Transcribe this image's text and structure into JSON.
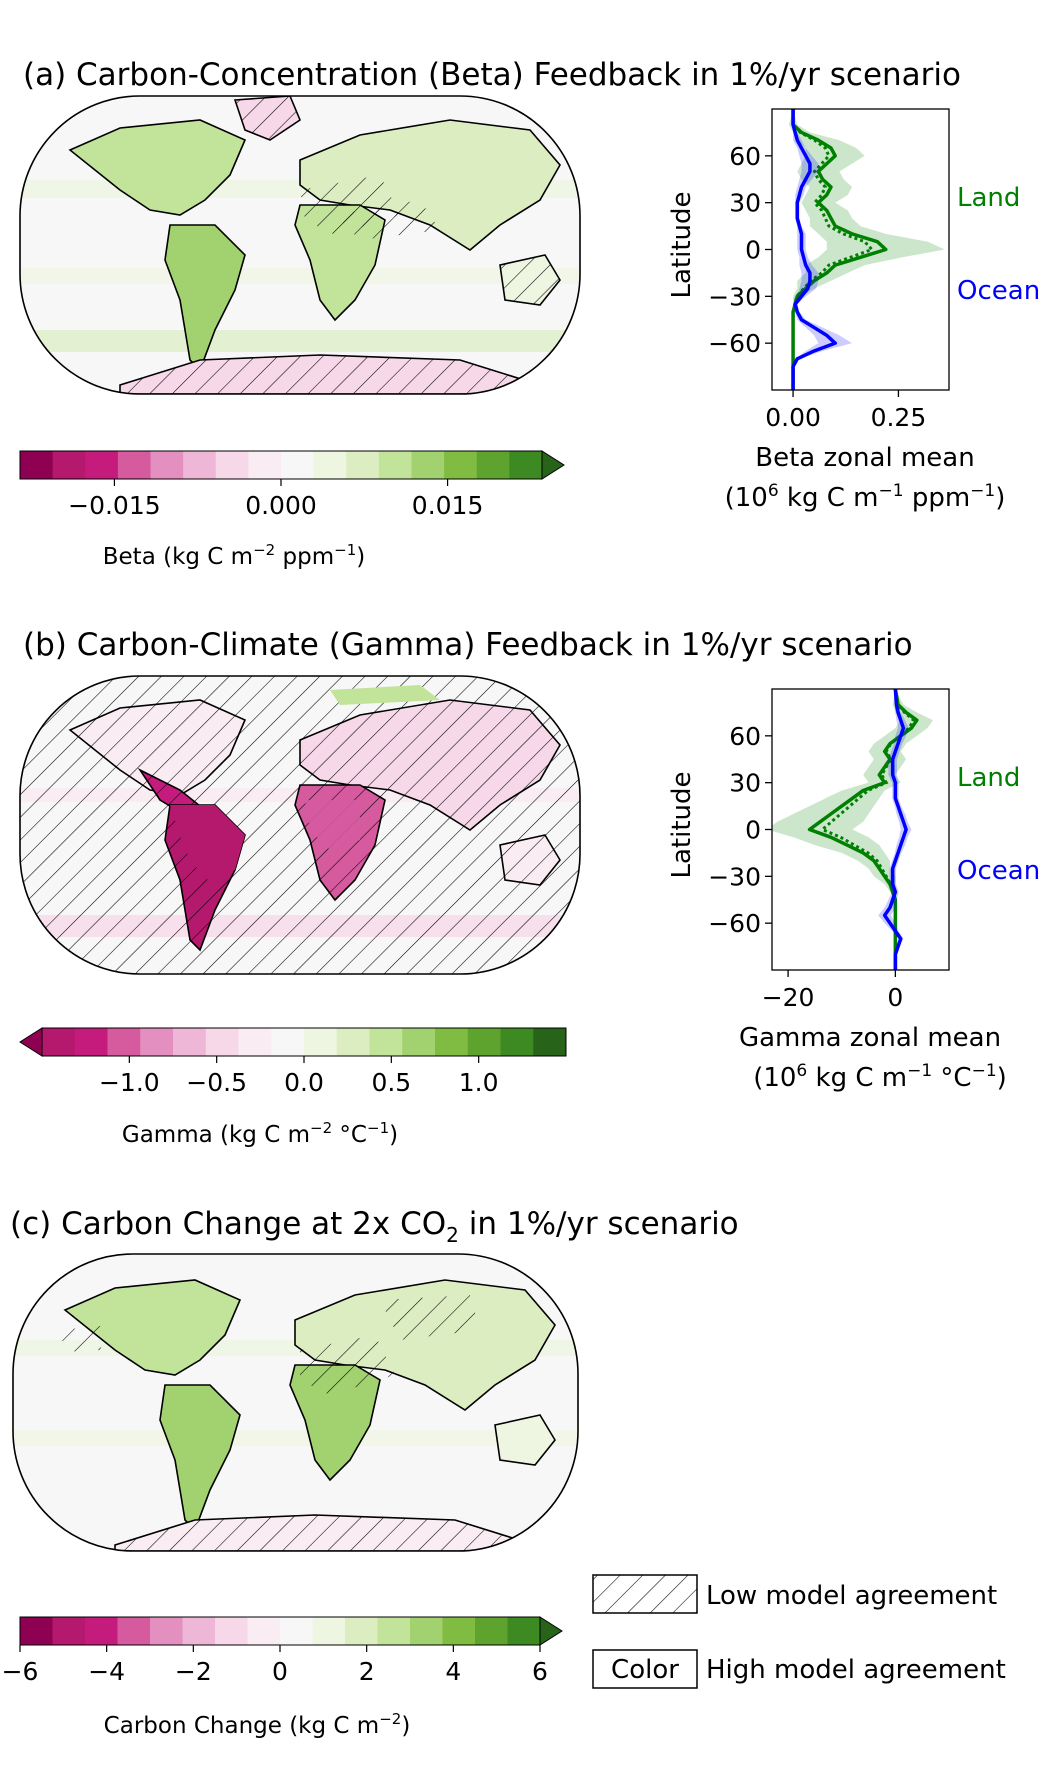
{
  "panels": {
    "a": {
      "title": "(a) Carbon-Concentration (Beta) Feedback in 1%/yr scenario",
      "colorbar": {
        "label": "Beta (kg C m",
        "label_sup": "−2",
        "label_rest": " ppm",
        "label_sup2": "−1",
        "label_close": ")",
        "ticks": [
          "−0.015",
          "0.000",
          "0.015"
        ],
        "tick_values": [
          -0.015,
          0.0,
          0.015
        ],
        "range": [
          -0.0235,
          0.0235
        ],
        "extend": "max"
      },
      "zonal": {
        "xlabel": "Beta zonal mean",
        "xunit_pre": "(10",
        "xunit_sup": "6",
        "xunit_mid": " kg C m",
        "xunit_sup2": "−1",
        "xunit_mid2": " ppm",
        "xunit_sup3": "−1",
        "xunit_close": ")",
        "ylabel": "Latitude",
        "xticks": [
          "0.00",
          "0.25"
        ],
        "xtick_values": [
          0.0,
          0.25
        ],
        "yticks": [
          "60",
          "30",
          "0",
          "−30",
          "−60"
        ],
        "xlim": [
          -0.05,
          0.37
        ],
        "ylim": [
          -90,
          90
        ],
        "land_label": "Land",
        "ocean_label": "Ocean"
      }
    },
    "b": {
      "title": "(b) Carbon-Climate (Gamma) Feedback in 1%/yr scenario",
      "colorbar": {
        "label": "Gamma (kg C m",
        "label_sup": "−2",
        "label_rest": " °C",
        "label_sup2": "−1",
        "label_close": ")",
        "ticks": [
          "−1.0",
          "−0.5",
          "0.0",
          "0.5",
          "1.0"
        ],
        "tick_values": [
          -1.0,
          -0.5,
          0.0,
          0.5,
          1.0
        ],
        "range": [
          -1.5,
          1.5
        ],
        "extend": "min"
      },
      "zonal": {
        "xlabel": "Gamma zonal mean",
        "xunit_pre": "(10",
        "xunit_sup": "6",
        "xunit_mid": " kg C m",
        "xunit_sup2": "−1",
        "xunit_mid2": " °C",
        "xunit_sup3": "−1",
        "xunit_close": ")",
        "ylabel": "Latitude",
        "xticks": [
          "−20",
          "0"
        ],
        "xtick_values": [
          -20,
          0
        ],
        "yticks": [
          "60",
          "30",
          "0",
          "−30",
          "−60"
        ],
        "xlim": [
          -23,
          10
        ],
        "ylim": [
          -90,
          90
        ],
        "land_label": "Land",
        "ocean_label": "Ocean"
      }
    },
    "c": {
      "title_pre": "(c) Carbon Change at 2x CO",
      "title_sub": "2",
      "title_post": " in 1%/yr scenario",
      "colorbar": {
        "label": "Carbon Change (kg C m",
        "label_sup": "−2",
        "label_close": ")",
        "ticks": [
          "−6",
          "−4",
          "−2",
          "0",
          "2",
          "4",
          "6"
        ],
        "tick_values": [
          -6,
          -4,
          -2,
          0,
          2,
          4,
          6
        ],
        "range": [
          -6,
          6
        ],
        "extend": "max"
      }
    }
  },
  "legend": {
    "hatch_label": "Low model agreement",
    "color_box": "Color",
    "color_label": "High model agreement"
  },
  "colors": {
    "land": "#008000",
    "ocean": "#0000ff",
    "bins": [
      "#8e0152",
      "#b5196e",
      "#c51b7d",
      "#d55a9e",
      "#e38fbf",
      "#eeb7d8",
      "#f6d8e9",
      "#f9ecf2",
      "#f7f7f7",
      "#eef5e1",
      "#dcedc2",
      "#c1e39a",
      "#a2d16f",
      "#7fbc41",
      "#5ea32e",
      "#3e8a22",
      "#276419"
    ]
  },
  "chart_data": [
    {
      "type": "line",
      "title": "(a) Carbon-Concentration (Beta) Feedback in 1%/yr scenario",
      "xlabel": "Beta zonal mean (10^6 kg C m^-1 ppm^-1)",
      "ylabel": "Latitude",
      "xlim": [
        -0.05,
        0.37
      ],
      "ylim": [
        -90,
        90
      ],
      "series": [
        {
          "name": "Land",
          "lat": [
            90,
            80,
            75,
            70,
            65,
            60,
            55,
            50,
            45,
            40,
            35,
            30,
            25,
            20,
            15,
            10,
            5,
            0,
            -5,
            -10,
            -15,
            -20,
            -25,
            -30,
            -35,
            -40,
            -45,
            -50,
            -55,
            -60,
            -70,
            -80,
            -90
          ],
          "values": [
            0.0,
            0.0,
            0.02,
            0.06,
            0.09,
            0.1,
            0.08,
            0.06,
            0.07,
            0.09,
            0.08,
            0.06,
            0.08,
            0.09,
            0.1,
            0.14,
            0.2,
            0.22,
            0.16,
            0.1,
            0.08,
            0.05,
            0.03,
            0.01,
            0.005,
            0.0,
            0.0,
            0.0,
            0.0,
            0.0,
            0.0,
            0.0,
            0.0
          ],
          "spread": [
            0.0,
            0.01,
            0.02,
            0.05,
            0.06,
            0.07,
            0.06,
            0.05,
            0.05,
            0.05,
            0.05,
            0.04,
            0.05,
            0.05,
            0.06,
            0.08,
            0.12,
            0.14,
            0.1,
            0.07,
            0.05,
            0.04,
            0.02,
            0.01,
            0.005,
            0.0,
            0.0,
            0.0,
            0.0,
            0.0,
            0.0,
            0.0,
            0.0
          ]
        },
        {
          "name": "Ocean",
          "lat": [
            90,
            80,
            75,
            70,
            65,
            60,
            55,
            50,
            45,
            40,
            35,
            30,
            25,
            20,
            15,
            10,
            5,
            0,
            -5,
            -10,
            -15,
            -20,
            -25,
            -30,
            -35,
            -40,
            -45,
            -50,
            -55,
            -60,
            -65,
            -70,
            -75,
            -80,
            -90
          ],
          "values": [
            0.0,
            0.0,
            0.005,
            0.01,
            0.02,
            0.03,
            0.04,
            0.04,
            0.03,
            0.02,
            0.015,
            0.01,
            0.01,
            0.01,
            0.015,
            0.02,
            0.02,
            0.02,
            0.025,
            0.03,
            0.04,
            0.04,
            0.035,
            0.02,
            0.005,
            0.01,
            0.02,
            0.05,
            0.08,
            0.1,
            0.05,
            0.01,
            0.0,
            0.0,
            0.0
          ],
          "spread": [
            0.0,
            0.0,
            0.005,
            0.01,
            0.01,
            0.015,
            0.02,
            0.02,
            0.015,
            0.01,
            0.01,
            0.005,
            0.005,
            0.005,
            0.005,
            0.01,
            0.01,
            0.01,
            0.01,
            0.015,
            0.02,
            0.02,
            0.02,
            0.01,
            0.005,
            0.005,
            0.01,
            0.02,
            0.03,
            0.04,
            0.02,
            0.005,
            0.0,
            0.0,
            0.0
          ]
        }
      ]
    },
    {
      "type": "line",
      "title": "(b) Carbon-Climate (Gamma) Feedback in 1%/yr scenario",
      "xlabel": "Gamma zonal mean (10^6 kg C m^-1 °C^-1)",
      "ylabel": "Latitude",
      "xlim": [
        -23,
        10
      ],
      "ylim": [
        -90,
        90
      ],
      "series": [
        {
          "name": "Land",
          "lat": [
            90,
            80,
            75,
            70,
            65,
            60,
            55,
            50,
            45,
            40,
            35,
            30,
            25,
            20,
            15,
            10,
            5,
            0,
            -5,
            -10,
            -15,
            -20,
            -25,
            -30,
            -35,
            -40,
            -45,
            -50,
            -55,
            -60,
            -70,
            -80,
            -90
          ],
          "values": [
            0,
            0.5,
            2,
            4,
            3,
            1,
            -1,
            -2,
            -1,
            -2,
            -3,
            -2,
            -6,
            -8,
            -10,
            -12,
            -14,
            -16,
            -12,
            -9,
            -6,
            -4,
            -3,
            -2,
            -1,
            -0.5,
            0,
            0,
            0,
            0,
            0,
            0,
            0
          ],
          "spread": [
            0,
            1,
            2,
            3,
            3,
            3,
            3,
            3,
            3,
            3,
            3,
            3,
            4,
            5,
            6,
            7,
            8,
            8,
            7,
            6,
            4,
            3,
            2,
            2,
            1,
            0.5,
            0,
            0,
            0,
            0,
            0,
            0,
            0
          ]
        },
        {
          "name": "Ocean",
          "lat": [
            90,
            80,
            75,
            70,
            65,
            60,
            55,
            50,
            45,
            40,
            35,
            30,
            25,
            20,
            15,
            10,
            5,
            0,
            -5,
            -10,
            -15,
            -20,
            -25,
            -30,
            -35,
            -40,
            -45,
            -50,
            -55,
            -60,
            -65,
            -70,
            -75,
            -80,
            -90
          ],
          "values": [
            0,
            0.2,
            0.5,
            1,
            1.5,
            1,
            0.5,
            0,
            -0.5,
            -0.5,
            -0.5,
            0,
            0,
            0,
            0.5,
            1,
            1.5,
            2,
            1.5,
            1,
            0.5,
            0,
            -0.5,
            -0.5,
            -0.5,
            0,
            -0.5,
            -1,
            -2,
            -1,
            0,
            1,
            0.5,
            0,
            0
          ],
          "spread": [
            0,
            0.3,
            0.5,
            0.8,
            1,
            1,
            0.8,
            0.8,
            0.8,
            0.8,
            0.8,
            0.6,
            0.6,
            0.6,
            0.6,
            0.8,
            0.8,
            1,
            0.8,
            0.8,
            0.6,
            0.6,
            0.6,
            0.6,
            0.6,
            0.6,
            0.8,
            1,
            1.2,
            1,
            0.6,
            0.5,
            0.3,
            0,
            0
          ]
        }
      ]
    }
  ]
}
